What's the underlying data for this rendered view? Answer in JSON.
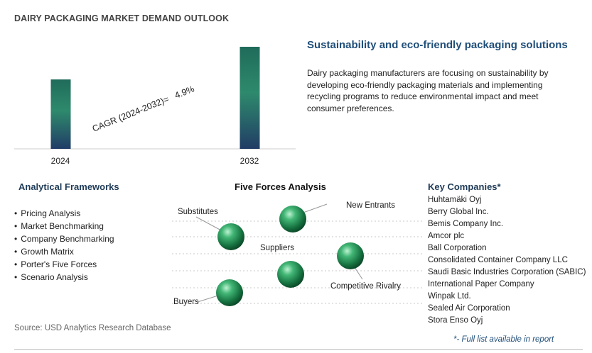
{
  "title": "DAIRY PACKAGING MARKET DEMAND OUTLOOK",
  "chart_data": {
    "type": "bar",
    "categories": [
      "2024",
      "2032"
    ],
    "values": [
      0.68,
      1.0
    ],
    "cagr_label": "CAGR (2024-2032)=",
    "cagr_value": "4.9%",
    "xlabel": "",
    "ylabel": "",
    "grid": false
  },
  "colors": {
    "bar_top": "#1f6b5a",
    "bar_mid": "#2e8a6c",
    "bar_bottom": "#213c66",
    "heading": "#1f4e79",
    "section": "#1f3b57"
  },
  "right": {
    "title": "Sustainability and eco-friendly packaging solutions",
    "description": "Dairy packaging manufacturers are focusing on sustainability by developing eco-friendly packaging materials and implementing recycling programs to reduce environmental impact and meet consumer preferences."
  },
  "frameworks": {
    "title": "Analytical Frameworks",
    "items": [
      "Pricing Analysis",
      "Market Benchmarking",
      "Company Benchmarking",
      "Growth Matrix",
      "Porter's Five Forces",
      "Scenario Analysis"
    ]
  },
  "five_forces": {
    "title": "Five Forces Analysis",
    "labels": {
      "substitutes": "Substitutes",
      "new_entrants": "New Entrants",
      "suppliers": "Suppliers",
      "competitive_rivalry": "Competitive Rivalry",
      "buyers": "Buyers"
    },
    "sphere_icon": "green-sphere-icon"
  },
  "companies": {
    "title": "Key Companies*",
    "items": [
      "Huhtamäki Oyj",
      "Berry Global Inc.",
      "Bemis Company Inc.",
      "Amcor plc",
      "Ball Corporation",
      "Consolidated Container Company LLC",
      "Saudi Basic Industries Corporation (SABIC)",
      "International Paper Company",
      "Winpak Ltd.",
      "Sealed Air Corporation",
      "Stora Enso Oyj"
    ],
    "note": "*- Full list available in report"
  },
  "source": "Source: USD Analytics Research Database"
}
